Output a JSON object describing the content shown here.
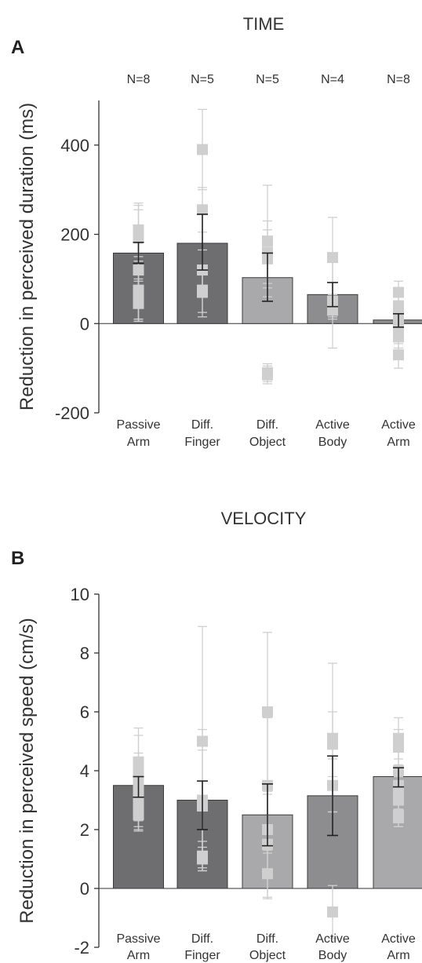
{
  "colors": {
    "dark_bar": "#6e6e70",
    "mid_bar": "#8d8d8f",
    "light_bar": "#a9a9ab",
    "marker": "#cfcfcf",
    "axis": "#333333"
  },
  "chart_data": [
    {
      "type": "bar",
      "panel": "A",
      "title": "TIME",
      "xlabel": "",
      "ylabel": "Reduction in perceived duration (ms)",
      "ylim": [
        -200,
        500
      ],
      "yticks": [
        -200,
        0,
        200,
        400
      ],
      "categories": [
        "Passive Arm",
        "Diff. Finger",
        "Diff. Object",
        "Active Body",
        "Active Arm"
      ],
      "category_lines": [
        [
          "Passive",
          "Arm"
        ],
        [
          "Diff.",
          "Finger"
        ],
        [
          "Diff.",
          "Object"
        ],
        [
          "Active",
          "Body"
        ],
        [
          "Active",
          "Arm"
        ]
      ],
      "n_labels": [
        "N=8",
        "N=5",
        "N=5",
        "N=4",
        "N=8"
      ],
      "values": [
        158,
        180,
        103,
        65,
        8
      ],
      "error": [
        [
          135,
          182
        ],
        [
          120,
          245
        ],
        [
          50,
          158
        ],
        [
          38,
          92
        ],
        [
          -8,
          22
        ]
      ],
      "bar_colors": [
        "dark",
        "dark",
        "light",
        "mid",
        "mid"
      ],
      "individual": [
        {
          "points": [
            210,
            200,
            195,
            120,
            75,
            70,
            45,
            50
          ],
          "ranges": [
            [
              140,
              265
            ],
            [
              150,
              270
            ],
            [
              130,
              255
            ],
            [
              50,
              180
            ],
            [
              10,
              140
            ],
            [
              5,
              135
            ],
            [
              5,
              95
            ],
            [
              10,
              100
            ]
          ]
        },
        {
          "points": [
            390,
            255,
            120,
            75,
            70
          ],
          "ranges": [
            [
              300,
              480
            ],
            [
              205,
              305
            ],
            [
              70,
              165
            ],
            [
              25,
              120
            ],
            [
              15,
              110
            ]
          ]
        },
        {
          "points": [
            185,
            160,
            145,
            -115,
            -110
          ],
          "ranges": [
            [
              60,
              310
            ],
            [
              90,
              230
            ],
            [
              80,
              210
            ],
            [
              -135,
              -90
            ],
            [
              -130,
              -95
            ]
          ]
        },
        {
          "points": [
            148,
            50,
            30,
            40
          ],
          "ranges": [
            [
              60,
              238
            ],
            [
              -55,
              150
            ],
            [
              10,
              60
            ],
            [
              15,
              65
            ]
          ]
        },
        {
          "points": [
            70,
            40,
            25,
            -10,
            -30,
            -70,
            5,
            15
          ],
          "ranges": [
            [
              45,
              95
            ],
            [
              15,
              65
            ],
            [
              0,
              50
            ],
            [
              -35,
              15
            ],
            [
              -55,
              -5
            ],
            [
              -100,
              -45
            ],
            [
              -20,
              30
            ],
            [
              -10,
              40
            ]
          ]
        }
      ]
    },
    {
      "type": "bar",
      "panel": "B",
      "title": "VELOCITY",
      "xlabel": "",
      "ylabel": "Reduction in perceived speed (cm/s)",
      "ylim": [
        -2,
        10
      ],
      "yticks": [
        -2,
        0,
        2,
        4,
        6,
        8,
        10
      ],
      "categories": [
        "Passive Arm",
        "Diff. Finger",
        "Diff. Object",
        "Active Body",
        "Active Arm"
      ],
      "category_lines": [
        [
          "Passive",
          "Arm"
        ],
        [
          "Diff.",
          "Finger"
        ],
        [
          "Diff.",
          "Object"
        ],
        [
          "Active",
          "Body"
        ],
        [
          "Active",
          "Arm"
        ]
      ],
      "values": [
        3.5,
        3.0,
        2.5,
        3.15,
        3.8
      ],
      "error": [
        [
          3.1,
          3.8
        ],
        [
          2.0,
          3.65
        ],
        [
          1.45,
          3.55
        ],
        [
          1.8,
          4.5
        ],
        [
          3.45,
          4.1
        ]
      ],
      "bar_colors": [
        "dark",
        "dark",
        "light",
        "mid",
        "light"
      ],
      "individual": [
        {
          "points": [
            4.3,
            4.0,
            3.6,
            3.2,
            2.8,
            2.5,
            3.0,
            3.4
          ],
          "ranges": [
            [
              3.1,
              5.45
            ],
            [
              2.8,
              5.2
            ],
            [
              2.6,
              4.6
            ],
            [
              2.1,
              4.3
            ],
            [
              1.95,
              3.6
            ],
            [
              2.0,
              3.0
            ],
            [
              2.3,
              3.7
            ],
            [
              2.7,
              4.1
            ]
          ]
        },
        {
          "points": [
            5.0,
            3.0,
            2.8,
            1.0,
            1.1
          ],
          "ranges": [
            [
              1.2,
              8.9
            ],
            [
              0.6,
              5.4
            ],
            [
              0.9,
              4.7
            ],
            [
              0.6,
              1.4
            ],
            [
              0.7,
              1.6
            ]
          ]
        },
        {
          "points": [
            6.0,
            3.5,
            2.0,
            1.5,
            0.5
          ],
          "ranges": [
            [
              3.3,
              8.7
            ],
            [
              1.2,
              5.8
            ],
            [
              0.6,
              3.4
            ],
            [
              -0.35,
              3.2
            ],
            [
              -0.3,
              1.3
            ]
          ]
        },
        {
          "points": [
            5.1,
            4.9,
            3.5,
            -0.8
          ],
          "ranges": [
            [
              2.6,
              7.65
            ],
            [
              3.8,
              6.0
            ],
            [
              2.6,
              4.4
            ],
            [
              -1.7,
              0.1
            ]
          ]
        },
        {
          "points": [
            5.1,
            4.8,
            4.0,
            3.5,
            3.0,
            2.5,
            2.4,
            3.2
          ],
          "ranges": [
            [
              4.4,
              5.8
            ],
            [
              4.2,
              5.4
            ],
            [
              3.2,
              4.8
            ],
            [
              2.9,
              4.1
            ],
            [
              2.4,
              3.6
            ],
            [
              2.1,
              2.9
            ],
            [
              2.1,
              2.7
            ],
            [
              2.6,
              3.8
            ]
          ]
        }
      ]
    }
  ]
}
